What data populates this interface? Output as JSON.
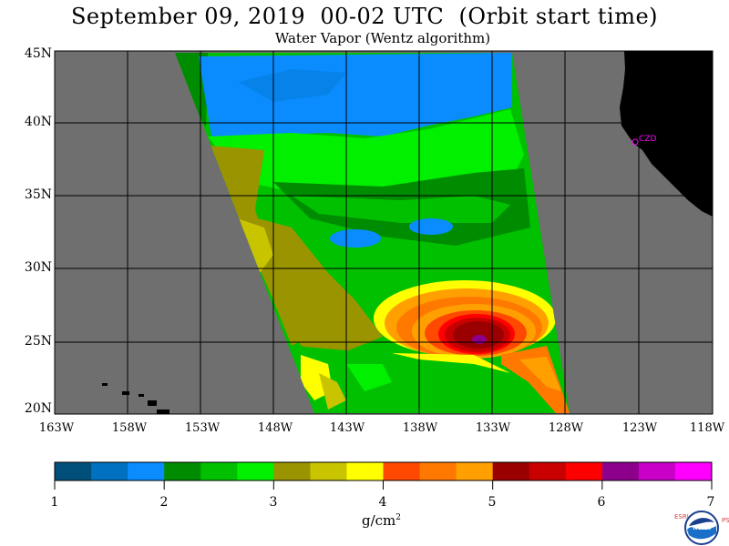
{
  "header": {
    "title": "September 09, 2019  00-02 UTC  (Orbit start time)",
    "subtitle": "Water Vapor (Wentz algorithm)"
  },
  "map": {
    "lat_labels": [
      "45N",
      "40N",
      "35N",
      "30N",
      "25N",
      "20N"
    ],
    "lon_labels": [
      "163W",
      "158W",
      "153W",
      "148W",
      "143W",
      "138W",
      "133W",
      "128W",
      "123W",
      "118W"
    ],
    "station_label": "CZD",
    "colors": {
      "no_data": "#6f6f6f",
      "land": "#000000",
      "grid": "#000000",
      "station": "#ff00ff"
    }
  },
  "colorbar": {
    "ticks": [
      "1",
      "2",
      "3",
      "4",
      "5",
      "6",
      "7"
    ],
    "units": "g/cm",
    "units_exp": "2",
    "colors": [
      "#004f7a",
      "#0070c0",
      "#0a8cff",
      "#008c00",
      "#00c000",
      "#00f000",
      "#9a9400",
      "#c8c400",
      "#ffff00",
      "#ff4800",
      "#ff7800",
      "#ffa000",
      "#9a0000",
      "#c80000",
      "#ff0000",
      "#8c008c",
      "#c800c8",
      "#ff00ff"
    ]
  },
  "logo": {
    "left_text": "ESRL",
    "right_text": "PSD",
    "center_text": "NOAA"
  }
}
